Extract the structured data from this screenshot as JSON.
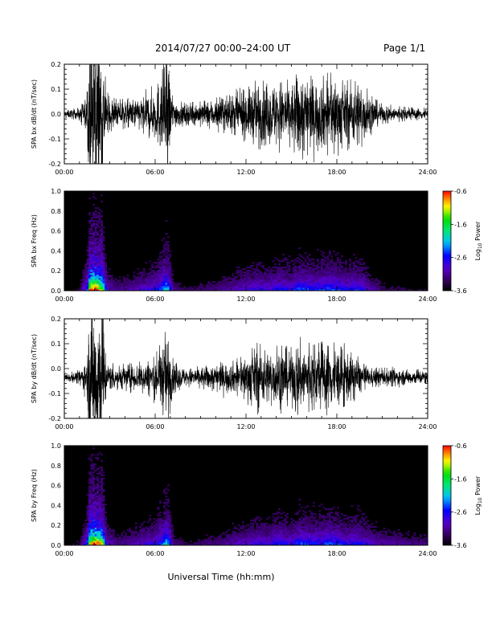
{
  "header": {
    "title": "2014/07/27  00:00–24:00 UT",
    "page": "Page 1/1"
  },
  "footer": {
    "xlabel": "Universal Time (hh:mm)"
  },
  "chart_data": [
    {
      "type": "line",
      "ylabel": "SPA bx dB/dt (nT/sec)",
      "xlim": [
        0,
        24
      ],
      "ylim": [
        -0.2,
        0.2
      ],
      "xticks": [
        "00:00",
        "06:00",
        "12:00",
        "18:00",
        "24:00"
      ],
      "yticks": [
        "-0.2",
        "-0.1",
        "0.0",
        "0.1",
        "0.2"
      ],
      "envelope": {
        "hours": [
          0,
          1,
          1.5,
          1.7,
          2.0,
          2.5,
          2.8,
          3.5,
          4.5,
          5.2,
          6.0,
          6.5,
          6.8,
          7.2,
          8,
          9,
          10,
          11,
          12,
          12.8,
          13.5,
          14.2,
          15,
          15.5,
          16.5,
          17.5,
          18,
          18.5,
          19.3,
          19.8,
          20.2,
          21,
          22,
          23,
          24
        ],
        "amplitude": [
          0.012,
          0.02,
          0.07,
          0.25,
          0.25,
          0.25,
          0.06,
          0.045,
          0.05,
          0.06,
          0.09,
          0.15,
          0.2,
          0.05,
          0.035,
          0.04,
          0.05,
          0.06,
          0.08,
          0.11,
          0.09,
          0.12,
          0.1,
          0.15,
          0.11,
          0.13,
          0.12,
          0.1,
          0.12,
          0.1,
          0.06,
          0.03,
          0.025,
          0.02,
          0.02
        ]
      },
      "offset": 0.0
    },
    {
      "type": "heatmap",
      "ylabel": "SPA bx Freq (Hz)",
      "xlim": [
        0,
        24
      ],
      "ylim": [
        0,
        1
      ],
      "xticks": [
        "00:00",
        "06:00",
        "12:00",
        "18:00",
        "24:00"
      ],
      "yticks": [
        "0.0",
        "0.2",
        "0.4",
        "0.6",
        "0.8",
        "1.0"
      ],
      "colorbar": {
        "label": "Log10 Power",
        "range": [
          -3.6,
          -0.6
        ],
        "ticks": [
          "-0.6",
          "-1.6",
          "-2.6",
          "-3.6"
        ]
      },
      "activity": {
        "hours": [
          0,
          1,
          1.5,
          1.7,
          2.0,
          2.5,
          2.8,
          3.5,
          4.5,
          5.2,
          6.0,
          6.5,
          6.8,
          7.2,
          8,
          9,
          10,
          11,
          12,
          12.8,
          13.5,
          14.2,
          15,
          15.5,
          16.5,
          17.5,
          18,
          18.5,
          19.3,
          19.8,
          20.2,
          21,
          22,
          23,
          24
        ],
        "level": [
          0.05,
          0.1,
          0.35,
          1.0,
          1.0,
          0.9,
          0.25,
          0.15,
          0.2,
          0.25,
          0.3,
          0.45,
          0.6,
          0.15,
          0.1,
          0.12,
          0.15,
          0.2,
          0.25,
          0.3,
          0.28,
          0.35,
          0.3,
          0.4,
          0.35,
          0.4,
          0.38,
          0.32,
          0.35,
          0.3,
          0.2,
          0.12,
          0.1,
          0.08,
          0.08
        ]
      }
    },
    {
      "type": "line",
      "ylabel": "SPA by dB/dt (nT/sec)",
      "xlim": [
        0,
        24
      ],
      "ylim": [
        -0.2,
        0.2
      ],
      "xticks": [
        "00:00",
        "06:00",
        "12:00",
        "18:00",
        "24:00"
      ],
      "yticks": [
        "-0.2",
        "-0.1",
        "0.0",
        "0.1",
        "0.2"
      ],
      "envelope": {
        "hours": [
          0,
          1,
          1.5,
          1.7,
          2.0,
          2.5,
          2.8,
          3.5,
          4.5,
          5.2,
          6.0,
          6.5,
          6.8,
          7.2,
          8,
          9,
          10,
          11,
          12,
          12.8,
          13.5,
          14.2,
          15,
          15.5,
          16.5,
          17.5,
          18,
          18.5,
          19.3,
          19.8,
          20.2,
          21,
          22,
          23,
          24
        ],
        "amplitude": [
          0.015,
          0.02,
          0.07,
          0.26,
          0.26,
          0.26,
          0.05,
          0.04,
          0.045,
          0.05,
          0.07,
          0.12,
          0.16,
          0.05,
          0.03,
          0.035,
          0.045,
          0.05,
          0.07,
          0.11,
          0.09,
          0.1,
          0.09,
          0.12,
          0.1,
          0.12,
          0.1,
          0.09,
          0.07,
          0.04,
          0.03,
          0.03,
          0.028,
          0.025,
          0.025
        ]
      },
      "offset": -0.035
    },
    {
      "type": "heatmap",
      "ylabel": "SPA by Freq (Hz)",
      "xlim": [
        0,
        24
      ],
      "ylim": [
        0,
        1
      ],
      "xticks": [
        "00:00",
        "06:00",
        "12:00",
        "18:00",
        "24:00"
      ],
      "yticks": [
        "0.0",
        "0.2",
        "0.4",
        "0.6",
        "0.8",
        "1.0"
      ],
      "colorbar": {
        "label": "Log10 Power",
        "range": [
          -3.6,
          -0.6
        ],
        "ticks": [
          "-0.6",
          "-1.6",
          "-2.6",
          "-3.6"
        ]
      },
      "activity": {
        "hours": [
          0,
          1,
          1.5,
          1.7,
          2.0,
          2.5,
          2.8,
          3.5,
          4.5,
          5.2,
          6.0,
          6.5,
          6.8,
          7.2,
          8,
          9,
          10,
          11,
          12,
          12.8,
          13.5,
          14.2,
          15,
          15.5,
          16.5,
          17.5,
          18,
          18.5,
          19.3,
          19.8,
          20.2,
          21,
          22,
          23,
          24
        ],
        "level": [
          0.05,
          0.1,
          0.35,
          1.0,
          1.0,
          0.9,
          0.25,
          0.15,
          0.2,
          0.25,
          0.3,
          0.45,
          0.6,
          0.15,
          0.1,
          0.12,
          0.15,
          0.2,
          0.25,
          0.3,
          0.28,
          0.35,
          0.3,
          0.4,
          0.35,
          0.4,
          0.38,
          0.32,
          0.35,
          0.3,
          0.25,
          0.2,
          0.18,
          0.15,
          0.15
        ]
      }
    }
  ]
}
